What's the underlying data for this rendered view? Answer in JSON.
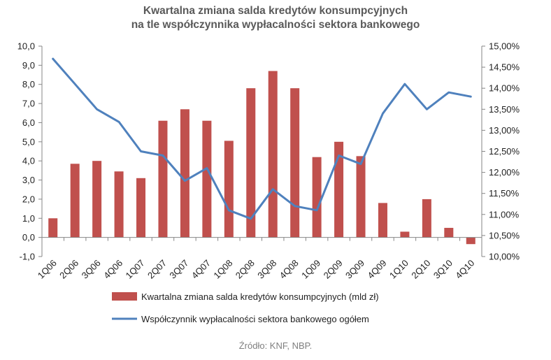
{
  "chart_data": {
    "type": "bar+line",
    "title_line1": "Kwartalna zmiana salda kredytów konsumpcyjnych",
    "title_line2": "na tle współczynnika wypłacalności sektora bankowego",
    "categories": [
      "1Q06",
      "2Q06",
      "3Q06",
      "4Q06",
      "1Q07",
      "2Q07",
      "3Q07",
      "4Q07",
      "1Q08",
      "2Q08",
      "3Q08",
      "4Q08",
      "1Q09",
      "2Q09",
      "3Q09",
      "4Q09",
      "1Q10",
      "2Q10",
      "3Q10",
      "4Q10"
    ],
    "left_axis": {
      "ylim": [
        -1,
        10
      ],
      "ticks": [
        "-1,0",
        "0,0",
        "1,0",
        "2,0",
        "3,0",
        "4,0",
        "5,0",
        "6,0",
        "7,0",
        "8,0",
        "9,0",
        "10,0"
      ]
    },
    "right_axis": {
      "ylim": [
        10.0,
        15.0
      ],
      "ticks": [
        "10,00%",
        "10,50%",
        "11,00%",
        "11,50%",
        "12,00%",
        "12,50%",
        "13,00%",
        "13,50%",
        "14,00%",
        "14,50%",
        "15,00%"
      ]
    },
    "series": [
      {
        "name": "Kwartalna zmiana salda kredytów konsumpcyjnych (mld zł)",
        "type": "bar",
        "axis": "left",
        "color": "#c0504d",
        "values": [
          1.0,
          3.85,
          4.0,
          3.45,
          3.1,
          6.1,
          6.7,
          6.1,
          5.05,
          7.8,
          8.7,
          7.8,
          4.2,
          5.0,
          4.25,
          1.8,
          0.3,
          2.0,
          0.5,
          -0.35
        ]
      },
      {
        "name": "Współczynnik wypłacalności sektora bankowego ogółem",
        "type": "line",
        "axis": "right",
        "color": "#4f81bd",
        "values": [
          14.7,
          14.1,
          13.5,
          13.2,
          12.5,
          12.4,
          11.8,
          12.1,
          11.1,
          10.9,
          11.6,
          11.2,
          11.1,
          12.4,
          12.2,
          13.4,
          14.1,
          13.5,
          13.9,
          13.8
        ]
      }
    ],
    "legend_position": "bottom",
    "grid": false,
    "source": "Źródło: KNF, NBP."
  }
}
